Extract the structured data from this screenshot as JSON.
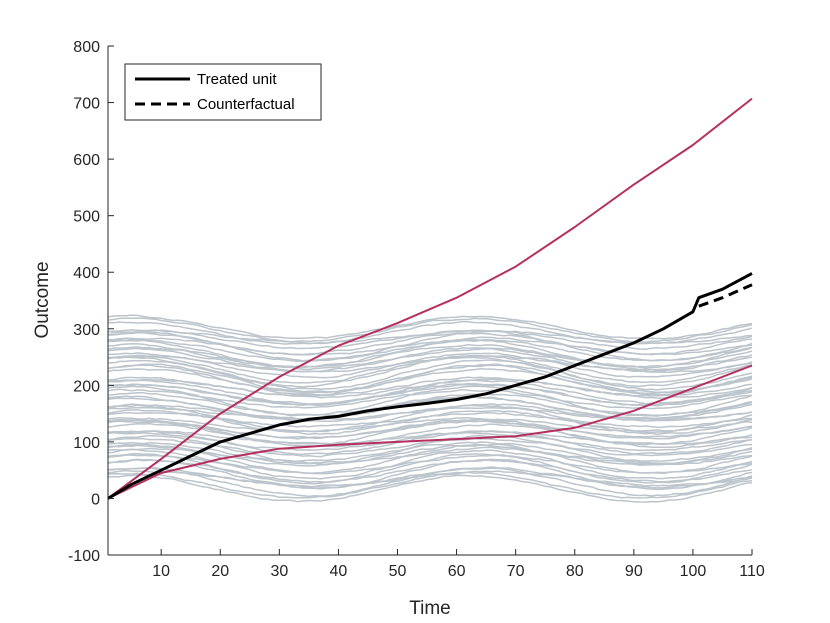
{
  "chart_data": {
    "type": "line",
    "title": "",
    "xlabel": "Time",
    "ylabel": "Outcome",
    "xlim": [
      1,
      110
    ],
    "ylim": [
      -100,
      800
    ],
    "xticks": [
      10,
      20,
      30,
      40,
      50,
      60,
      70,
      80,
      90,
      100,
      110
    ],
    "yticks": [
      -100,
      0,
      100,
      200,
      300,
      400,
      500,
      600,
      700,
      800
    ],
    "grid": false,
    "legend": {
      "placement": "top-left",
      "entries": [
        {
          "label": "Treated unit",
          "style": "solid"
        },
        {
          "label": "Counterfactual",
          "style": "dashed"
        }
      ]
    },
    "colors": {
      "donor": "#bcc4cc",
      "highlight": "#b5305e",
      "treated": "#000000"
    },
    "donor_pool": {
      "count": 60,
      "base_range": [
        20,
        300
      ],
      "wave_amplitude": [
        10,
        26
      ],
      "wave_period": 58,
      "wave_peak_t": 6
    },
    "series": [
      {
        "name": "Treated unit",
        "color": "#000000",
        "style": "solid",
        "x": [
          1,
          5,
          10,
          15,
          20,
          25,
          30,
          35,
          40,
          45,
          50,
          55,
          60,
          65,
          70,
          75,
          80,
          85,
          90,
          95,
          100,
          101,
          105,
          110
        ],
        "y": [
          0,
          25,
          50,
          75,
          100,
          115,
          130,
          140,
          145,
          155,
          162,
          168,
          175,
          185,
          200,
          215,
          235,
          255,
          275,
          300,
          330,
          355,
          370,
          398
        ]
      },
      {
        "name": "Counterfactual",
        "color": "#000000",
        "style": "dashed",
        "x": [
          101,
          105,
          110
        ],
        "y": [
          340,
          355,
          378
        ]
      },
      {
        "color": "#b5305e",
        "style": "solid",
        "x": [
          1,
          10,
          20,
          30,
          40,
          50,
          60,
          70,
          80,
          90,
          100,
          110
        ],
        "y": [
          0,
          70,
          150,
          215,
          270,
          310,
          355,
          410,
          480,
          555,
          625,
          707
        ]
      },
      {
        "color": "#b5305e",
        "style": "solid",
        "x": [
          1,
          10,
          20,
          30,
          40,
          50,
          60,
          70,
          80,
          90,
          100,
          110
        ],
        "y": [
          0,
          45,
          70,
          88,
          95,
          100,
          105,
          110,
          125,
          155,
          195,
          235
        ]
      }
    ]
  }
}
